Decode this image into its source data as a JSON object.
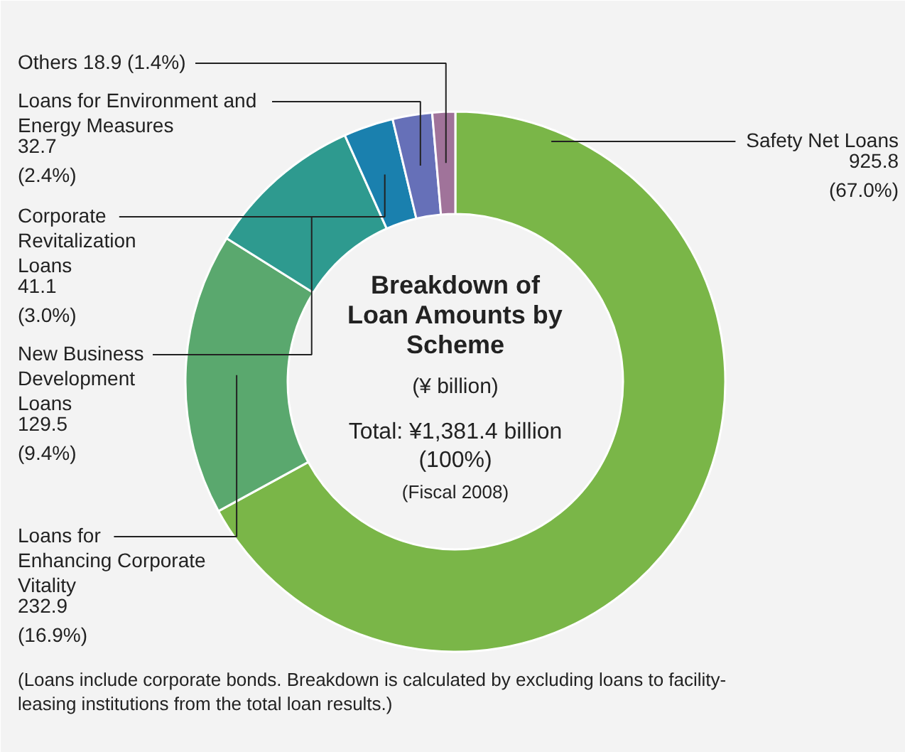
{
  "chart_data": {
    "type": "donut",
    "title": "Breakdown of Loan Amounts by Scheme",
    "subtitle": "(¥ billion)",
    "categories": [
      "Safety Net Loans",
      "Loans for\nEnhancing Corporate\nVitality",
      "New Business\nDevelopment\nLoans",
      "Corporate\nRevitalization\nLoans",
      "Loans for Environment and\nEnergy Measures",
      "Others"
    ],
    "values": [
      925.8,
      232.9,
      129.5,
      41.1,
      32.7,
      18.9
    ],
    "value_labels": [
      "925.8 (67.0%)",
      "232.9 (16.9%)",
      "129.5 (9.4%)",
      "41.1 (3.0%)",
      "32.7 (2.4%)",
      "18.9 (1.4%)"
    ],
    "colors": [
      "#7ab648",
      "#5aa86e",
      "#2e9a8f",
      "#1a80ae",
      "#6670b8",
      "#a0739a"
    ],
    "annotations": [
      "Total: ¥1,381.4 billion (100%)",
      "(Fiscal 2008)",
      "(Loans include corporate bonds. Breakdown is calculated by excluding loans to facility-leasing institutions from the total loan results.)"
    ]
  }
}
